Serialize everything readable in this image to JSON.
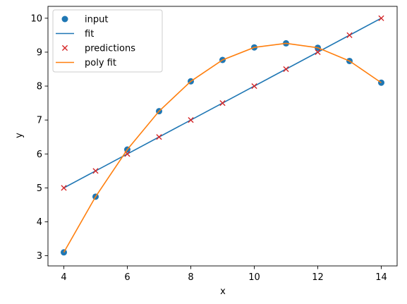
{
  "chart_data": {
    "type": "scatter",
    "xlabel": "x",
    "ylabel": "y",
    "xlim": [
      3.5,
      14.5
    ],
    "ylim": [
      2.7,
      10.35
    ],
    "xticks": [
      4,
      6,
      8,
      10,
      12,
      14
    ],
    "yticks": [
      3,
      4,
      5,
      6,
      7,
      8,
      9,
      10
    ],
    "grid": false,
    "legend_position": "top-left",
    "series": [
      {
        "name": "input",
        "kind": "scatter",
        "marker": "circle",
        "color": "#1f77b4",
        "x": [
          4,
          5,
          6,
          7,
          8,
          9,
          10,
          11,
          12,
          13,
          14
        ],
        "y": [
          3.1,
          4.74,
          6.13,
          7.26,
          8.14,
          8.77,
          9.14,
          9.26,
          9.13,
          8.74,
          8.1
        ]
      },
      {
        "name": "fit",
        "kind": "line",
        "color": "#1f77b4",
        "x": [
          4,
          14
        ],
        "y": [
          5.0,
          10.0
        ]
      },
      {
        "name": "predictions",
        "kind": "scatter",
        "marker": "x",
        "color": "#d62728",
        "x": [
          4,
          5,
          6,
          7,
          8,
          9,
          10,
          11,
          12,
          13,
          14
        ],
        "y": [
          5.0,
          5.5,
          6.0,
          6.5,
          7.0,
          7.5,
          8.0,
          8.5,
          9.0,
          9.5,
          10.0
        ]
      },
      {
        "name": "poly fit",
        "kind": "line",
        "color": "#ff7f0e",
        "x": [
          4,
          5,
          6,
          7,
          8,
          9,
          10,
          11,
          12,
          13,
          14
        ],
        "y": [
          3.1,
          4.74,
          6.13,
          7.26,
          8.14,
          8.77,
          9.14,
          9.26,
          9.13,
          8.74,
          8.1
        ]
      }
    ]
  }
}
